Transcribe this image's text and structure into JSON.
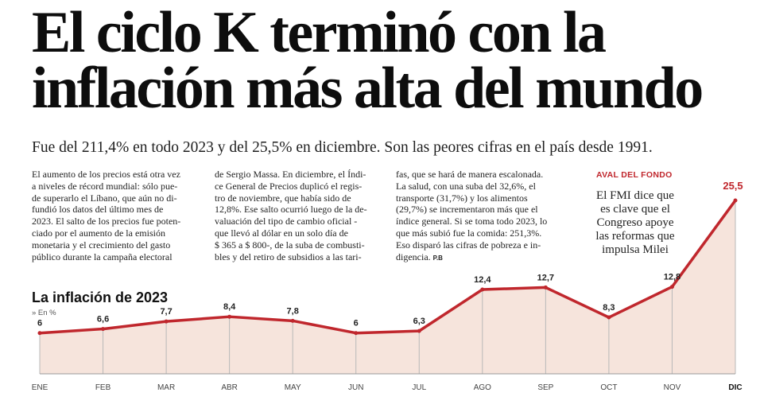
{
  "headline": {
    "line1": "El ciclo K terminó con la",
    "line2": "inflación más alta del mundo"
  },
  "subhead": "Fue del 211,4% en todo 2023 y del 25,5% en diciembre. Son las peores cifras en el país desde 1991.",
  "body": {
    "col1": "El aumento de los precios está otra vez\na niveles de récord mundial: sólo pue-\nde superarlo el Líbano, que aún no di-\nfundió los datos del último mes de\n2023. El salto de los precios fue poten-\nciado por el aumento de la emisión\nmonetaria y el crecimiento del gasto\npúblico durante la campaña electoral",
    "col2": "de Sergio Massa. En diciembre, el Índi-\nce General de Precios duplicó el regis-\ntro de noviembre, que había sido de\n12,8%. Ese salto ocurrió luego de la de-\nvaluación del tipo de cambio oficial -\nque llevó al dólar en un solo día de\n$ 365 a $ 800-, de la suba de combusti-\nbles y del retiro de subsidios a las tari-",
    "col3": "fas, que se hará de manera escalonada.\nLa salud, con una suba del 32,6%, el\ntransporte (31,7%) y los alimentos\n(29,7%) se incrementaron más que el\níndice general. Si se toma todo 2023, lo\nque más subió fue la comida: 251,3%.\nEso disparó las cifras de pobreza e in-\ndigencia.",
    "initials": "P.B"
  },
  "aside": {
    "kicker": "AVAL DEL FONDO",
    "text": "El FMI dice que\nes clave que el\nCongreso apoye\nlas reformas que\nimpulsa Milei"
  },
  "colors": {
    "line": "#c0272d",
    "area": "#f6e4dc",
    "marker": "#b8b8b8",
    "axis": "#9a9a9a"
  },
  "chart_data": {
    "type": "area",
    "title": "La inflación de 2023",
    "ylabel": "» En %",
    "categories": [
      "ENE",
      "FEB",
      "MAR",
      "ABR",
      "MAY",
      "JUN",
      "JUL",
      "AGO",
      "SEP",
      "OCT",
      "NOV",
      "DIC"
    ],
    "values": [
      6,
      6.6,
      7.7,
      8.4,
      7.8,
      6,
      6.3,
      12.4,
      12.7,
      8.3,
      12.8,
      25.5
    ],
    "value_labels": [
      "6",
      "6,6",
      "7,7",
      "8,4",
      "7,8",
      "6",
      "6,3",
      "12,4",
      "12,7",
      "8,3",
      "12,8",
      "25,5"
    ],
    "ylim": [
      0,
      25.5
    ],
    "grid": false
  }
}
